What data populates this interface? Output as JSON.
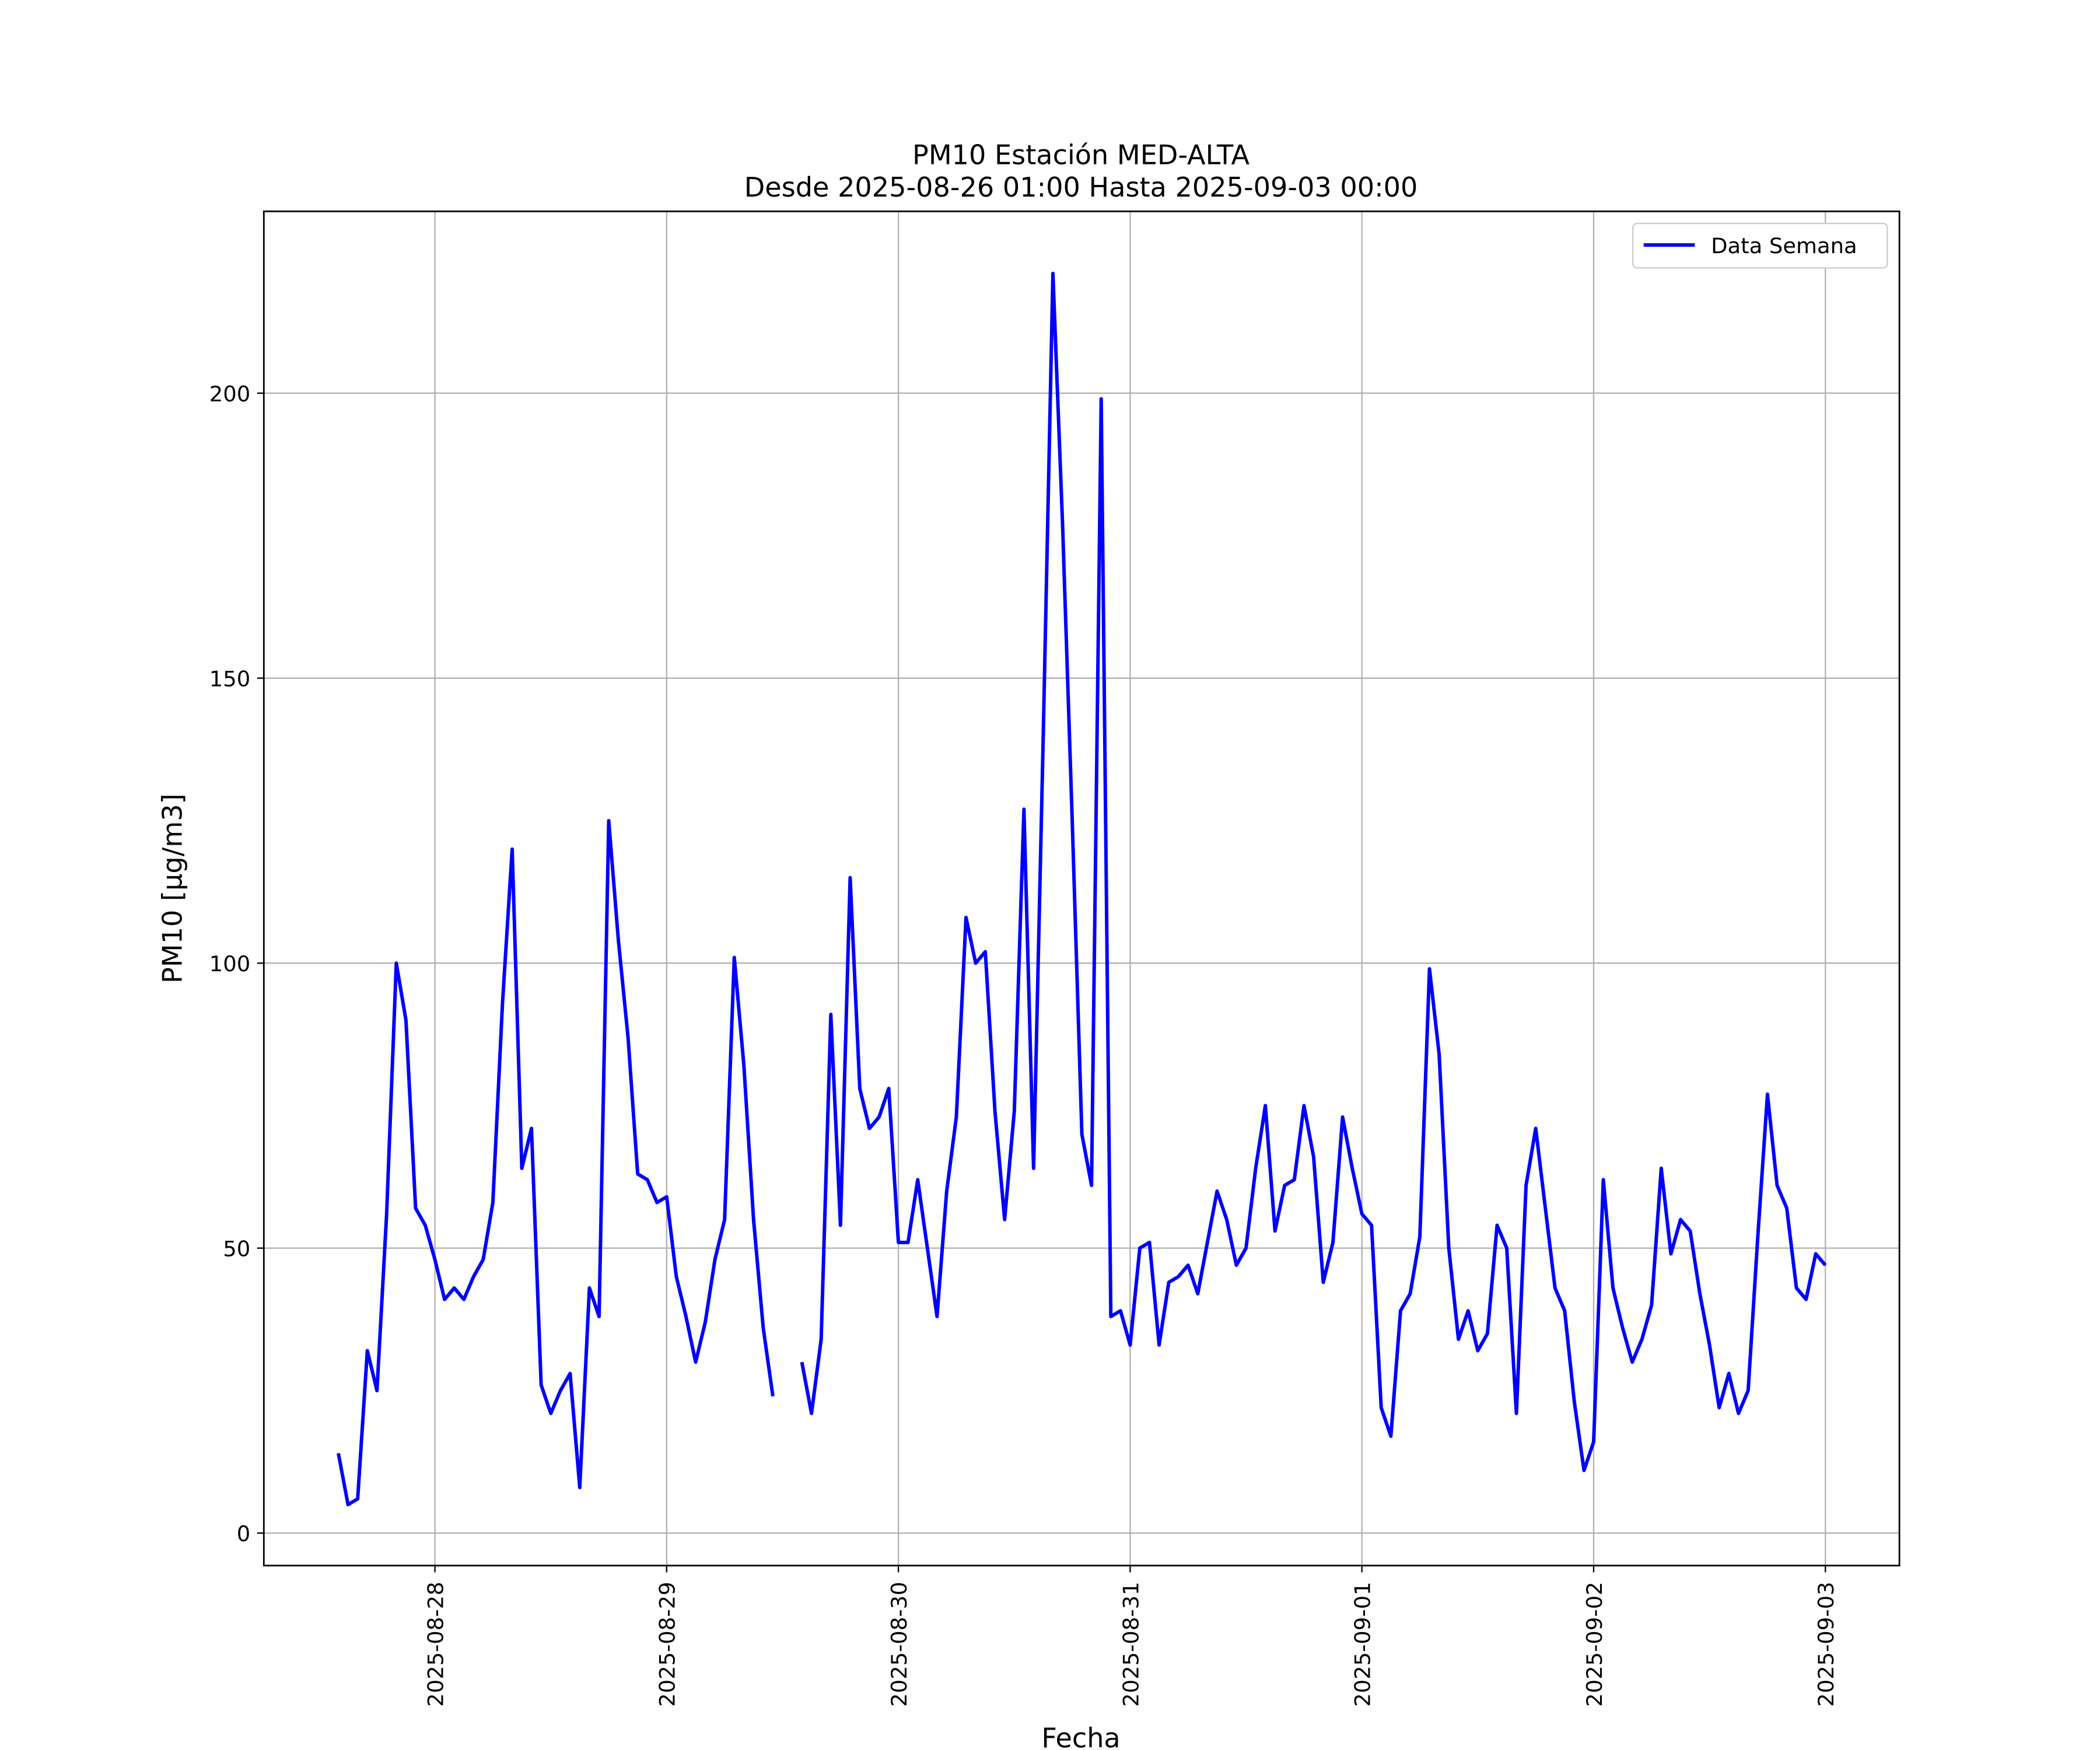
{
  "chart_data": {
    "type": "line",
    "title": "PM10 Estación MED-ALTA",
    "subtitle": "Desde 2025-08-26 01:00 Hasta 2025-09-03 00:00",
    "xlabel": "Fecha",
    "ylabel": "PM10 [μg/m3]",
    "x": [
      "2025-08-27 14:00",
      "2025-08-27 15:00",
      "2025-08-27 16:00",
      "2025-08-27 17:00",
      "2025-08-27 18:00",
      "2025-08-27 19:00",
      "2025-08-27 20:00",
      "2025-08-27 21:00",
      "2025-08-27 22:00",
      "2025-08-27 23:00",
      "2025-08-28 00:00",
      "2025-08-28 01:00",
      "2025-08-28 02:00",
      "2025-08-28 03:00",
      "2025-08-28 04:00",
      "2025-08-28 05:00",
      "2025-08-28 06:00",
      "2025-08-28 07:00",
      "2025-08-28 08:00",
      "2025-08-28 09:00",
      "2025-08-28 10:00",
      "2025-08-28 11:00",
      "2025-08-28 12:00",
      "2025-08-28 13:00",
      "2025-08-28 14:00",
      "2025-08-28 15:00",
      "2025-08-28 16:00",
      "2025-08-28 17:00",
      "2025-08-28 18:00",
      "2025-08-28 19:00",
      "2025-08-28 20:00",
      "2025-08-28 21:00",
      "2025-08-28 22:00",
      "2025-08-28 23:00",
      "2025-08-29 00:00",
      "2025-08-29 01:00",
      "2025-08-29 02:00",
      "2025-08-29 03:00",
      "2025-08-29 04:00",
      "2025-08-29 05:00",
      "2025-08-29 06:00",
      "2025-08-29 07:00",
      "2025-08-29 08:00",
      "2025-08-29 09:00",
      "2025-08-29 10:00",
      "2025-08-29 11:00",
      "2025-08-29 12:00",
      "2025-08-29 13:00",
      "2025-08-29 14:00",
      "2025-08-29 15:00",
      "2025-08-29 16:00",
      "2025-08-29 17:00",
      "2025-08-29 18:00",
      "2025-08-29 19:00",
      "2025-08-29 20:00",
      "2025-08-29 21:00",
      "2025-08-29 22:00",
      "2025-08-29 23:00",
      "2025-08-30 00:00",
      "2025-08-30 01:00",
      "2025-08-30 02:00",
      "2025-08-30 03:00",
      "2025-08-30 04:00",
      "2025-08-30 05:00",
      "2025-08-30 06:00",
      "2025-08-30 07:00",
      "2025-08-30 08:00",
      "2025-08-30 09:00",
      "2025-08-30 10:00",
      "2025-08-30 11:00",
      "2025-08-30 12:00",
      "2025-08-30 13:00",
      "2025-08-30 14:00",
      "2025-08-30 15:00",
      "2025-08-30 16:00",
      "2025-08-30 17:00",
      "2025-08-30 18:00",
      "2025-08-30 19:00",
      "2025-08-30 20:00",
      "2025-08-30 21:00",
      "2025-08-30 22:00",
      "2025-08-30 23:00",
      "2025-08-31 00:00",
      "2025-08-31 01:00",
      "2025-08-31 02:00",
      "2025-08-31 03:00",
      "2025-08-31 04:00",
      "2025-08-31 05:00",
      "2025-08-31 06:00",
      "2025-08-31 07:00",
      "2025-08-31 08:00",
      "2025-08-31 09:00",
      "2025-08-31 10:00",
      "2025-08-31 11:00",
      "2025-08-31 12:00",
      "2025-08-31 13:00",
      "2025-08-31 14:00",
      "2025-08-31 15:00",
      "2025-08-31 16:00",
      "2025-08-31 17:00",
      "2025-08-31 18:00",
      "2025-08-31 19:00",
      "2025-08-31 20:00",
      "2025-08-31 21:00",
      "2025-08-31 22:00",
      "2025-08-31 23:00",
      "2025-09-01 00:00",
      "2025-09-01 01:00",
      "2025-09-01 02:00",
      "2025-09-01 03:00",
      "2025-09-01 04:00",
      "2025-09-01 05:00",
      "2025-09-01 06:00",
      "2025-09-01 07:00",
      "2025-09-01 08:00",
      "2025-09-01 09:00",
      "2025-09-01 10:00",
      "2025-09-01 11:00",
      "2025-09-01 12:00",
      "2025-09-01 13:00",
      "2025-09-01 14:00",
      "2025-09-01 15:00",
      "2025-09-01 16:00",
      "2025-09-01 17:00",
      "2025-09-01 18:00",
      "2025-09-01 19:00",
      "2025-09-01 20:00",
      "2025-09-01 21:00",
      "2025-09-01 22:00",
      "2025-09-01 23:00",
      "2025-09-02 00:00",
      "2025-09-02 01:00",
      "2025-09-02 02:00",
      "2025-09-02 03:00",
      "2025-09-02 04:00",
      "2025-09-02 05:00",
      "2025-09-02 06:00",
      "2025-09-02 07:00",
      "2025-09-02 08:00",
      "2025-09-02 09:00",
      "2025-09-02 10:00",
      "2025-09-02 11:00",
      "2025-09-02 12:00",
      "2025-09-02 13:00",
      "2025-09-02 14:00",
      "2025-09-02 15:00",
      "2025-09-02 16:00",
      "2025-09-02 17:00",
      "2025-09-02 18:00",
      "2025-09-02 19:00",
      "2025-09-02 20:00",
      "2025-09-02 21:00",
      "2025-09-02 22:00",
      "2025-09-02 23:00",
      "2025-09-03 00:00"
    ],
    "series": [
      {
        "name": "Data Semana",
        "color": "#0000ff",
        "values": [
          14,
          5,
          6,
          32,
          25,
          56,
          100,
          90,
          57,
          54,
          48,
          41,
          43,
          41,
          45,
          48,
          58,
          93,
          120,
          64,
          71,
          26,
          21,
          25,
          28,
          8,
          43,
          38,
          125,
          104,
          87,
          63,
          62,
          58,
          59,
          45,
          38,
          30,
          37,
          48,
          55,
          101,
          82,
          55,
          36,
          24,
          null,
          null,
          30,
          21,
          34,
          91,
          54,
          115,
          78,
          71,
          73,
          78,
          51,
          51,
          62,
          50,
          38,
          60,
          73,
          108,
          100,
          102,
          74,
          55,
          74,
          127,
          64,
          140,
          221,
          177,
          125,
          70,
          61,
          199,
          38,
          39,
          33,
          50,
          51,
          33,
          44,
          45,
          47,
          42,
          51,
          60,
          55,
          47,
          50,
          64,
          75,
          53,
          61,
          62,
          75,
          66,
          44,
          51,
          73,
          64,
          56,
          54,
          22,
          17,
          39,
          42,
          52,
          99,
          84,
          50,
          34,
          39,
          32,
          35,
          54,
          50,
          21,
          61,
          71,
          57,
          43,
          39,
          23,
          11,
          16,
          62,
          43,
          36,
          30,
          34,
          40,
          64,
          49,
          55,
          53,
          42,
          33,
          22,
          28,
          21,
          25,
          52,
          77,
          61,
          57,
          43,
          41,
          49,
          47
        ]
      }
    ],
    "xlim": [
      "2025-08-27 06:17",
      "2025-09-03 07:40"
    ],
    "xticks": [
      "2025-08-28",
      "2025-08-29",
      "2025-08-30",
      "2025-08-31",
      "2025-09-01",
      "2025-09-02",
      "2025-09-03"
    ],
    "ylim": [
      -5.7,
      231.9
    ],
    "yticks": [
      0,
      50,
      100,
      150,
      200
    ],
    "grid": true,
    "legend": "upper right"
  }
}
